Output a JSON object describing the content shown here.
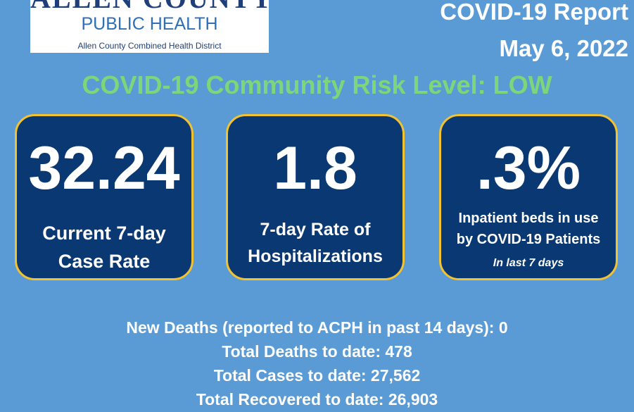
{
  "logo": {
    "top_text": "ALLEN COUNTY",
    "main_text": "PUBLIC HEALTH",
    "sub_text": "Allen County Combined Health District"
  },
  "header": {
    "title": "COVID-19 Report",
    "date": "May 6, 2022"
  },
  "risk_level": "COVID-19 Community Risk Level: LOW",
  "cards": [
    {
      "value": "32.24",
      "label_line1": "Current 7-day",
      "label_line2": "Case Rate"
    },
    {
      "value": "1.8",
      "label_line1": "7-day Rate of",
      "label_line2": "Hospitalizations"
    },
    {
      "value": ".3%",
      "label_line1": "Inpatient beds in use",
      "label_line2": "by COVID-19 Patients",
      "note": "In last  7 days"
    }
  ],
  "stats": {
    "new_deaths": "New Deaths (reported to ACPH in past 14 days): 0",
    "total_deaths": "Total Deaths to date: 478",
    "total_cases": "Total Cases to date: 27,562",
    "total_recovered": "Total Recovered to date: 26,903"
  },
  "colors": {
    "background": "#5b9bd5",
    "card_fill": "#0a3872",
    "card_border": "#f2c230",
    "risk_text": "#7cd67a"
  }
}
